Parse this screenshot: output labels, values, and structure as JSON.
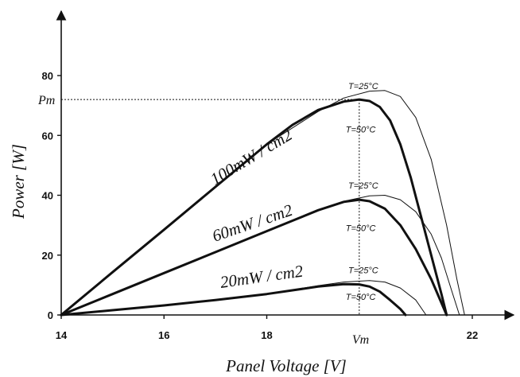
{
  "chart_data": {
    "type": "line",
    "title": "",
    "xlabel": "Panel Voltage [V]",
    "ylabel": "Power [W]",
    "xlim": [
      14,
      23
    ],
    "ylim": [
      0,
      90
    ],
    "xticks": [
      "14",
      "16",
      "18",
      "22"
    ],
    "yticks": [
      "0",
      "20",
      "40",
      "60",
      "80"
    ],
    "grid": false,
    "annotations": {
      "pm": "Pm",
      "vm": "Vm"
    },
    "series": [
      {
        "name": "100mW / cm2",
        "temperature": "T=50°C",
        "weight": "bold",
        "x": [
          14,
          15,
          16,
          17,
          18,
          18.5,
          19,
          19.5,
          19.8,
          20.0,
          20.2,
          20.4,
          20.6,
          20.8,
          21.0,
          21.2,
          21.4,
          21.5
        ],
        "y": [
          0,
          14.3,
          28.5,
          42.8,
          57.0,
          63.5,
          68.5,
          71.3,
          72.0,
          71.5,
          69.5,
          65.0,
          57.0,
          46.0,
          33.0,
          20.0,
          7.0,
          0
        ]
      },
      {
        "name": "",
        "temperature": "T=25°C",
        "weight": "thin",
        "x": [
          14,
          16,
          18,
          19,
          19.5,
          20.0,
          20.3,
          20.6,
          20.9,
          21.2,
          21.5,
          21.7,
          21.85
        ],
        "y": [
          0,
          28.5,
          57.0,
          68.0,
          72.5,
          74.8,
          75.0,
          73.0,
          66.0,
          52.0,
          30.0,
          12.0,
          0
        ]
      },
      {
        "name": "60mW / cm2",
        "temperature": "T=50°C",
        "weight": "bold",
        "x": [
          14,
          15,
          16,
          17,
          18,
          18.5,
          19,
          19.5,
          19.8,
          20.0,
          20.3,
          20.6,
          20.9,
          21.2,
          21.4,
          21.5
        ],
        "y": [
          0,
          7.0,
          14.0,
          21.0,
          28.0,
          31.5,
          35.0,
          37.8,
          38.5,
          38.0,
          35.5,
          30.0,
          22.0,
          12.0,
          4.0,
          0
        ]
      },
      {
        "name": "",
        "temperature": "T=25°C",
        "weight": "thin",
        "x": [
          14,
          16,
          18,
          19,
          19.5,
          20.0,
          20.3,
          20.6,
          20.9,
          21.2,
          21.4,
          21.6,
          21.75
        ],
        "y": [
          0,
          14.0,
          28.0,
          35.0,
          38.0,
          39.8,
          40.0,
          38.5,
          34.5,
          27.0,
          19.0,
          8.0,
          0
        ]
      },
      {
        "name": "20mW / cm2",
        "temperature": "T=50°C",
        "weight": "bold",
        "x": [
          14,
          15,
          16,
          17,
          18,
          19,
          19.5,
          19.8,
          20.0,
          20.2,
          20.4,
          20.6,
          20.7
        ],
        "y": [
          0,
          1.6,
          3.2,
          5.0,
          7.0,
          9.5,
          10.3,
          10.2,
          9.5,
          7.8,
          5.0,
          2.0,
          0
        ]
      },
      {
        "name": "",
        "temperature": "T=25°C",
        "weight": "thin",
        "x": [
          14,
          16,
          18,
          19,
          19.5,
          20.0,
          20.3,
          20.6,
          20.9,
          21.1
        ],
        "y": [
          0,
          3.2,
          7.0,
          9.8,
          11.0,
          11.5,
          11.0,
          9.0,
          5.0,
          0
        ]
      }
    ]
  }
}
